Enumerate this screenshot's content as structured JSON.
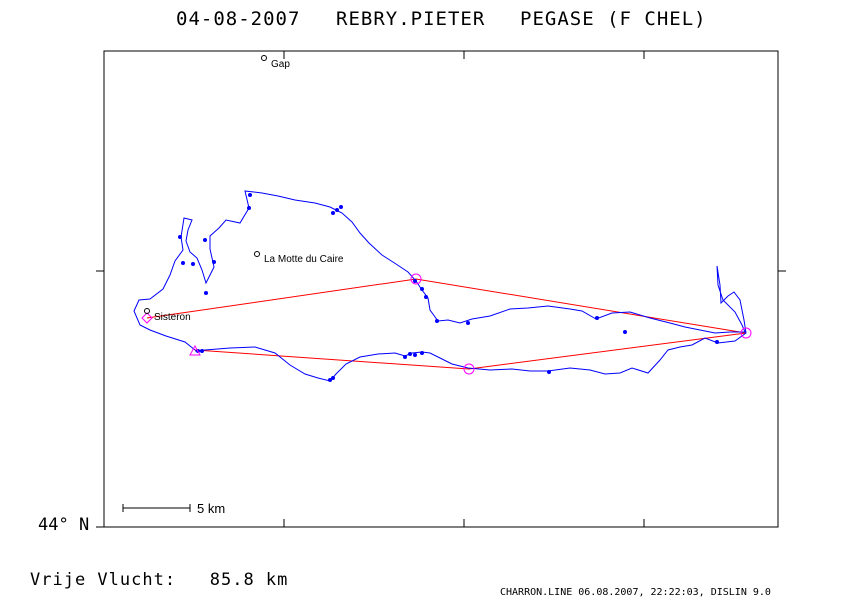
{
  "header": {
    "date": "04-08-2007",
    "pilot": "REBRY.PIETER",
    "glider": "PEGASE (F CHEL)"
  },
  "map": {
    "latitude_label": "44° N",
    "scale_label": "5 km",
    "track_color": "#0000ff",
    "task_color": "#ff0000",
    "turnpoint_color": "#ff00ff",
    "towns": [
      {
        "id": "gap",
        "name": "Gap"
      },
      {
        "id": "la-motte",
        "name": "La Motte du Caire"
      },
      {
        "id": "sisteron",
        "name": "Sisteron"
      }
    ]
  },
  "summary": {
    "distance_text": "Vrije Vlucht:   85.8 km"
  },
  "footer": {
    "text": "CHARRON.LINE 06.08.2007, 22:22:03, DISLIN 9.0"
  }
}
